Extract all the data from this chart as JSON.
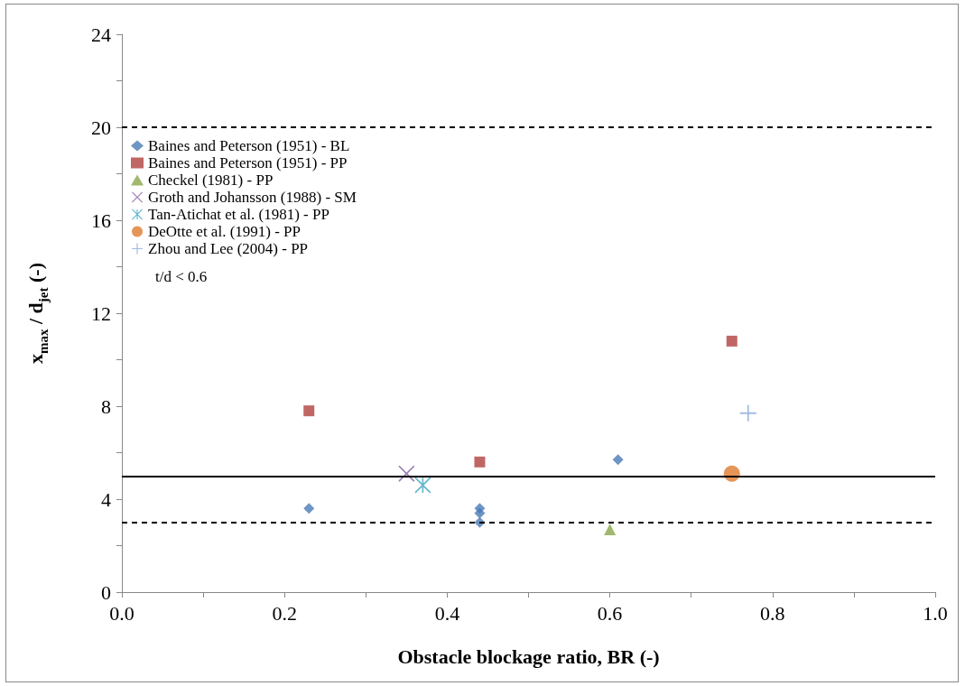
{
  "chart_data": {
    "type": "scatter",
    "xlabel": "Obstacle blockage ratio, BR (-)",
    "ylabel": "x$_{max}$ / d$_{jet}$ (-)",
    "xlim": [
      0,
      1
    ],
    "ylim": [
      0,
      24
    ],
    "xticks": [
      {
        "value": 0,
        "label": "0.0"
      },
      {
        "value": 0.1,
        "label": null
      },
      {
        "value": 0.2,
        "label": "0.2"
      },
      {
        "value": 0.3,
        "label": null
      },
      {
        "value": 0.4,
        "label": "0.4"
      },
      {
        "value": 0.5,
        "label": null
      },
      {
        "value": 0.6,
        "label": "0.6"
      },
      {
        "value": 0.7,
        "label": null
      },
      {
        "value": 0.8,
        "label": "0.8"
      },
      {
        "value": 0.9,
        "label": null
      },
      {
        "value": 1,
        "label": "1.0"
      }
    ],
    "yticks": [
      0,
      {
        "value": 2,
        "label": null
      },
      4,
      {
        "value": 6,
        "label": null
      },
      8,
      {
        "value": 10,
        "label": null
      },
      12,
      {
        "value": 14,
        "label": null
      },
      16,
      {
        "value": 18,
        "label": null
      },
      20,
      {
        "value": 22,
        "label": null
      },
      24
    ],
    "grid": false,
    "legend": "top left",
    "annotations": [
      "t/d < 0.6"
    ],
    "ref_lines": [
      {
        "axis": "y",
        "value": 20,
        "line_style": "dashed",
        "color": "#000000"
      },
      {
        "axis": "y",
        "value": 5,
        "line_style": "solid",
        "color": "#000000"
      },
      {
        "axis": "y",
        "value": 3,
        "line_style": "dashed",
        "color": "#000000"
      }
    ],
    "series": [
      {
        "name": "Baines and Peterson (1951) - BL",
        "color": "#4a7ab5",
        "marker": "diamond",
        "x": [
          0.23,
          0.44,
          0.44,
          0.44,
          0.61
        ],
        "values": [
          3.6,
          3.6,
          3.4,
          3.0,
          5.7
        ]
      },
      {
        "name": "Baines and Peterson (1951) - PP",
        "color": "#b0413e",
        "marker": "square",
        "x": [
          0.23,
          0.44,
          0.75
        ],
        "values": [
          7.8,
          5.6,
          10.8
        ]
      },
      {
        "name": "Checkel (1981) - PP",
        "color": "#8aa84a",
        "marker": "triangle",
        "x": [
          0.6
        ],
        "values": [
          2.7
        ]
      },
      {
        "name": "Groth and Johansson (1988) - SM",
        "color": "#7e5c9e",
        "marker": "x",
        "x": [
          0.35
        ],
        "values": [
          5.1
        ]
      },
      {
        "name": "Tan-Atichat et al. (1981) - PP",
        "color": "#3da5c0",
        "marker": "cross",
        "x": [
          0.37
        ],
        "values": [
          4.6
        ]
      },
      {
        "name": "DeOtte et al. (1991) - PP",
        "color": "#e07b30",
        "marker": "circle",
        "x": [
          0.75
        ],
        "values": [
          5.1
        ]
      },
      {
        "name": "Zhou and Lee (2004) - PP",
        "color": "#8eaadb",
        "marker": "plus",
        "x": [
          0.77
        ],
        "values": [
          7.7
        ]
      }
    ]
  }
}
